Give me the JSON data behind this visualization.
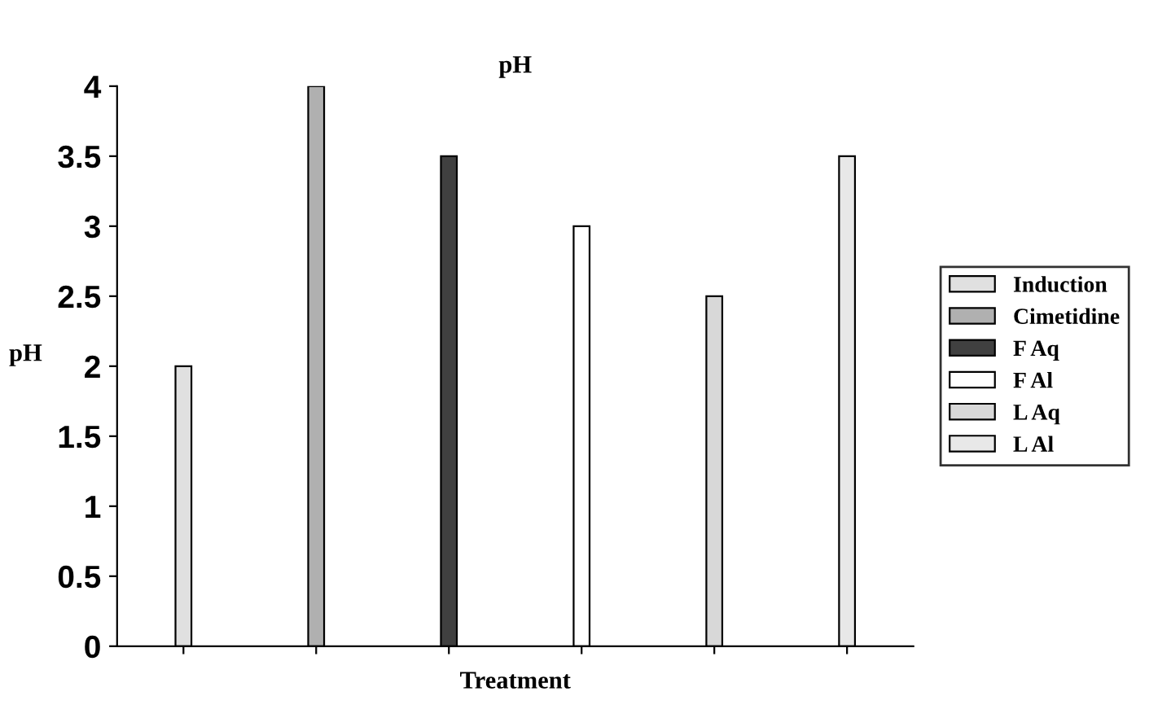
{
  "chart_data": {
    "type": "bar",
    "title": "pH",
    "xlabel": "Treatment",
    "ylabel": "pH",
    "categories": [
      null,
      null,
      null,
      null,
      null,
      null
    ],
    "series": [
      {
        "name": "Induction",
        "color": "#e0e0e0",
        "values": [
          2,
          null,
          null,
          null,
          null,
          null
        ]
      },
      {
        "name": "Cimetidine",
        "color": "#b0b0b0",
        "values": [
          null,
          4,
          null,
          null,
          null,
          null
        ]
      },
      {
        "name": "F Aq",
        "color": "#404040",
        "values": [
          null,
          null,
          3.5,
          null,
          null,
          null
        ]
      },
      {
        "name": "F Al",
        "color": "#ffffff",
        "values": [
          null,
          null,
          null,
          3,
          null,
          null
        ]
      },
      {
        "name": "L Aq",
        "color": "#d8d8d8",
        "values": [
          null,
          null,
          null,
          null,
          2.5,
          null
        ]
      },
      {
        "name": "L Al",
        "color": "#e8e8e8",
        "values": [
          null,
          null,
          null,
          null,
          null,
          3.5
        ]
      }
    ],
    "ylim": [
      0,
      4
    ],
    "yticks": [
      0,
      0.5,
      1,
      1.5,
      2,
      2.5,
      3,
      3.5,
      4
    ],
    "grid": false,
    "legend": "right"
  }
}
